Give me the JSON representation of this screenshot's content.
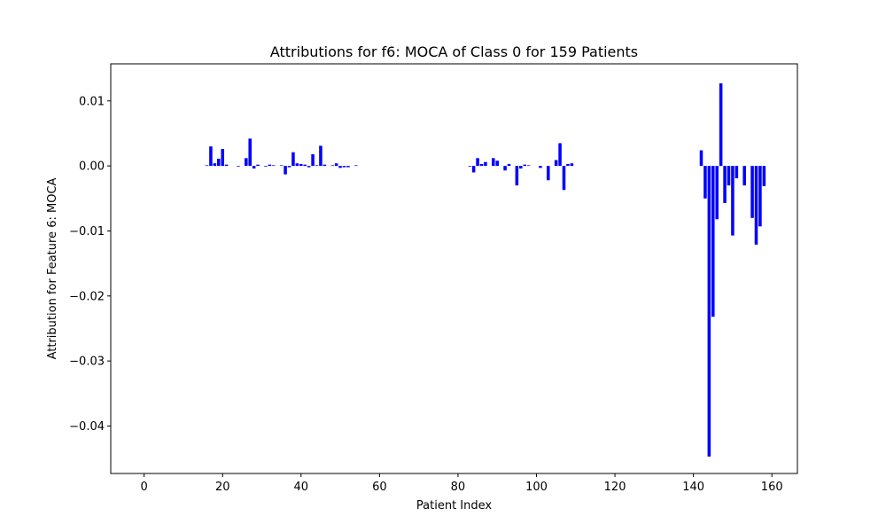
{
  "chart_data": {
    "type": "bar",
    "title": "Attributions for f6: MOCA of Class 0 for 159 Patients",
    "xlabel": "Patient Index",
    "ylabel": "Attribution for Feature 6: MOCA",
    "xlim": [
      -8.5,
      166.5
    ],
    "ylim": [
      -0.0473,
      0.0157
    ],
    "xticks": [
      0,
      20,
      40,
      60,
      80,
      100,
      120,
      140,
      160
    ],
    "xtick_labels": [
      "0",
      "20",
      "40",
      "60",
      "80",
      "100",
      "120",
      "140",
      "160"
    ],
    "yticks": [
      0.01,
      0.0,
      -0.01,
      -0.02,
      -0.03,
      -0.04
    ],
    "ytick_labels": [
      "0.01",
      "0.00",
      "−0.01",
      "−0.02",
      "−0.03",
      "−0.04"
    ],
    "grid": false,
    "bar_color": "#0000ff",
    "x": [
      16,
      17,
      18,
      19,
      20,
      21,
      24,
      26,
      27,
      28,
      29,
      31,
      32,
      33,
      35,
      36,
      37,
      38,
      39,
      40,
      41,
      42,
      43,
      44,
      45,
      46,
      48,
      49,
      50,
      51,
      52,
      54,
      83,
      84,
      85,
      86,
      87,
      89,
      90,
      92,
      93,
      95,
      96,
      97,
      98,
      101,
      103,
      105,
      106,
      107,
      108,
      109,
      142,
      143,
      144,
      145,
      146,
      147,
      148,
      149,
      150,
      151,
      153,
      155,
      156,
      157,
      158
    ],
    "values": [
      0.0001,
      0.003,
      0.0004,
      0.0011,
      0.0026,
      0.0002,
      -0.0001,
      0.0012,
      0.0042,
      -0.0004,
      0.0002,
      -0.0001,
      0.0002,
      0.0001,
      0.0001,
      -0.0013,
      -0.0002,
      0.0021,
      0.0004,
      0.0003,
      0.0002,
      -0.0002,
      0.0018,
      0.0001,
      0.0031,
      0.0002,
      0.0001,
      0.0004,
      -0.0003,
      -0.0002,
      -0.0002,
      0.0001,
      -0.0001,
      -0.001,
      0.0012,
      0.0003,
      0.0006,
      0.0012,
      0.0008,
      -0.0007,
      0.0003,
      -0.003,
      -0.0004,
      0.0002,
      0.0001,
      -0.0003,
      -0.0022,
      0.0009,
      0.0035,
      -0.0037,
      0.0003,
      0.0004,
      0.0024,
      -0.005,
      -0.0447,
      -0.0232,
      -0.0082,
      0.0127,
      -0.0057,
      -0.003,
      -0.0107,
      -0.0019,
      -0.003,
      -0.008,
      -0.0121,
      -0.0093,
      -0.0031
    ]
  }
}
